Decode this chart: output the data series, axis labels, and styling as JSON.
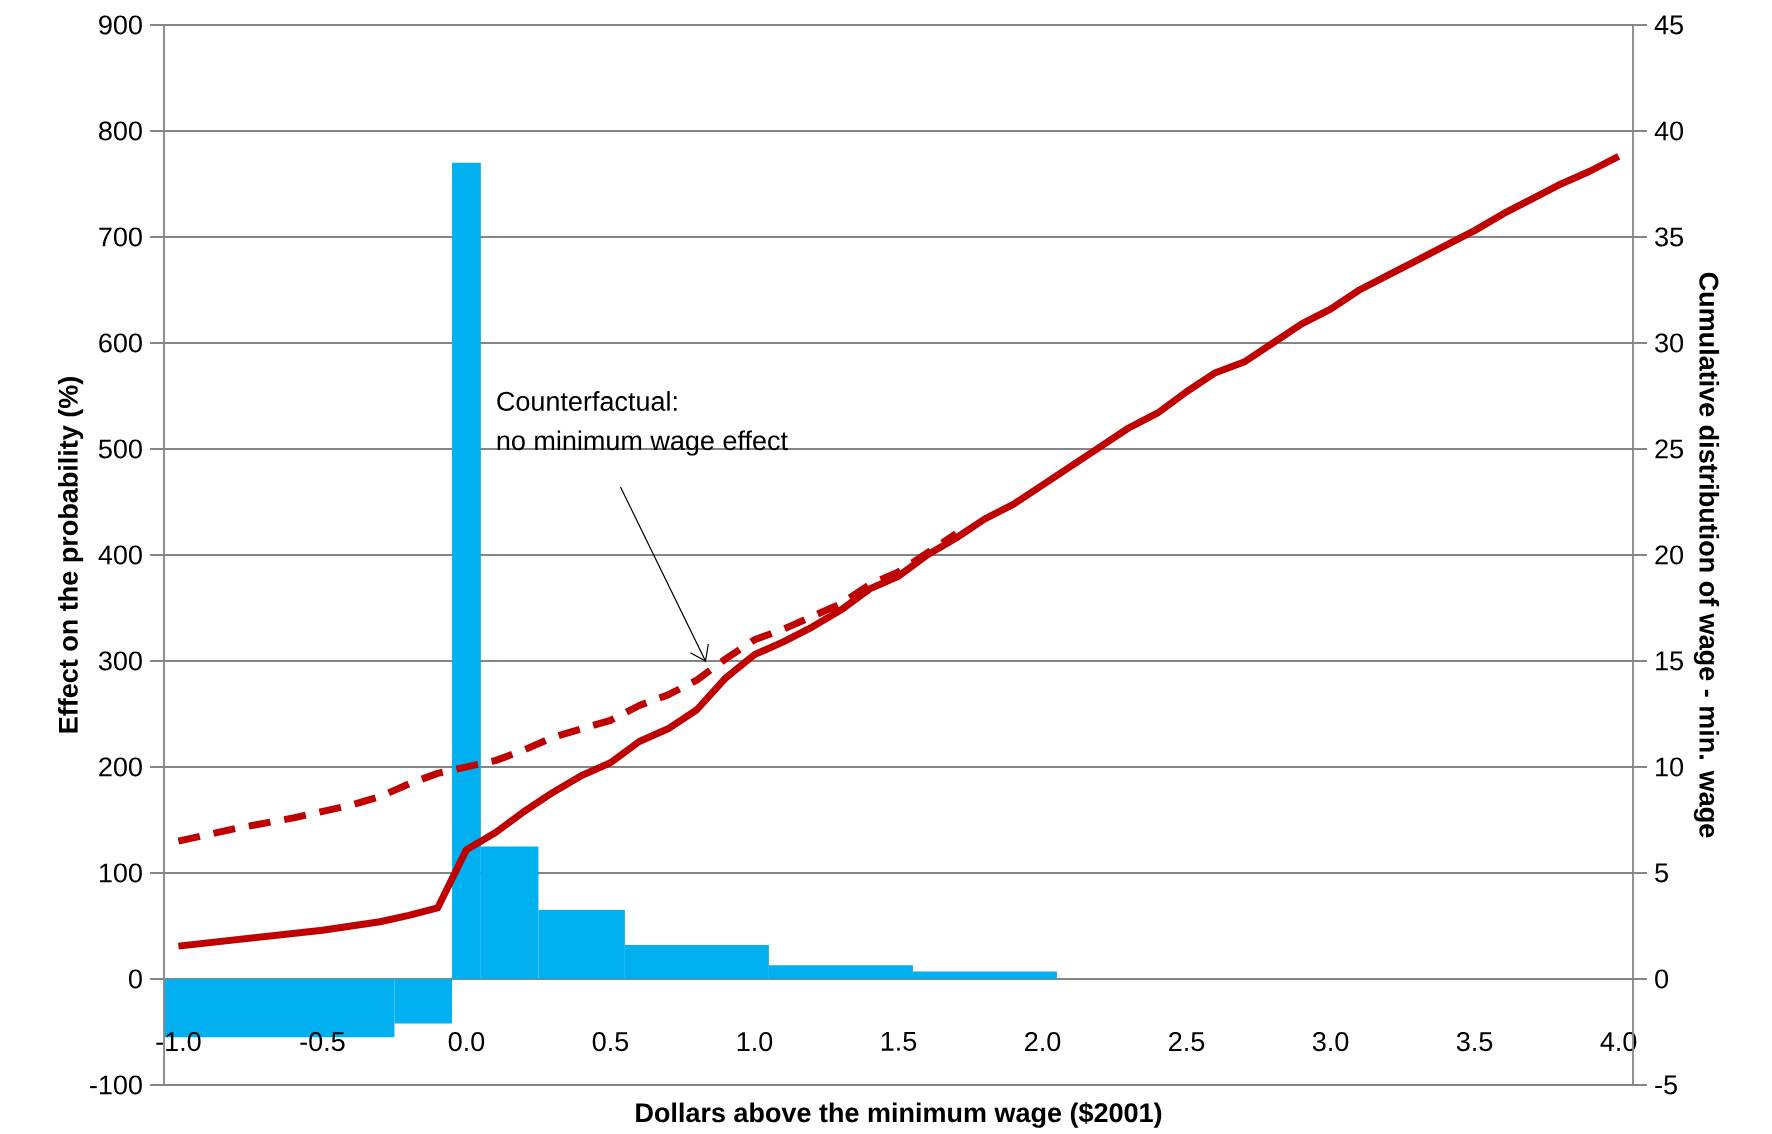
{
  "chart_data": {
    "type": "histogram",
    "xlabel": "Dollars above the minimum wage ($2001)",
    "ylabel": "Effect on the probability (%)",
    "y2label": "Cumulative distribution of wage - min. wage",
    "bins": [
      -1.05,
      -0.25,
      -0.05,
      0.05,
      0.25,
      0.55,
      1.05,
      1.55,
      2.05
    ],
    "values": [
      -55,
      -42,
      770,
      125,
      65,
      32,
      13,
      7
    ],
    "color": "#00b0f0",
    "series": [
      {
        "type": "line",
        "axis": "y2",
        "color": "#c00000",
        "line_style": "solid",
        "x": [
          -1.0,
          -0.5,
          -0.3,
          -0.2,
          -0.1,
          0.0,
          0.1,
          0.2,
          0.3,
          0.4,
          0.5,
          0.6,
          0.7,
          0.8,
          0.9,
          1.0,
          1.1,
          1.2,
          1.3,
          1.4,
          1.5,
          1.6,
          1.7,
          1.8,
          1.9,
          2.0,
          2.1,
          2.2,
          2.3,
          2.4,
          2.5,
          2.6,
          2.7,
          2.8,
          2.9,
          3.0,
          3.1,
          3.2,
          3.3,
          3.4,
          3.5,
          3.6,
          3.7,
          3.8,
          3.9,
          4.0
        ],
        "values": [
          1.55,
          2.3,
          2.7,
          3.0,
          3.35,
          6.1,
          6.9,
          7.9,
          8.8,
          9.6,
          10.2,
          11.2,
          11.8,
          12.7,
          14.2,
          15.3,
          15.9,
          16.6,
          17.4,
          18.4,
          19.0,
          20.0,
          20.8,
          21.7,
          22.4,
          23.3,
          24.2,
          25.1,
          26.0,
          26.7,
          27.7,
          28.6,
          29.1,
          30.0,
          30.9,
          31.6,
          32.5,
          33.2,
          33.9,
          34.6,
          35.3,
          36.1,
          36.8,
          37.5,
          38.1,
          38.8
        ]
      },
      {
        "type": "line",
        "axis": "y2",
        "color": "#c00000",
        "line_style": "dashed",
        "x": [
          -1.0,
          -0.8,
          -0.6,
          -0.4,
          -0.3,
          -0.2,
          -0.1,
          0.0,
          0.1,
          0.2,
          0.3,
          0.4,
          0.5,
          0.6,
          0.7,
          0.8,
          0.9,
          1.0,
          1.1,
          1.2,
          1.3,
          1.4,
          1.5,
          1.6,
          1.7
        ],
        "values": [
          6.5,
          7.1,
          7.6,
          8.2,
          8.6,
          9.2,
          9.7,
          10.0,
          10.3,
          10.8,
          11.4,
          11.8,
          12.2,
          12.9,
          13.4,
          14.1,
          15.1,
          16.0,
          16.5,
          17.1,
          17.7,
          18.6,
          19.2,
          20.1,
          21.0
        ]
      }
    ],
    "xlim": [
      -1.05,
      4.05
    ],
    "xticks": [
      {
        "value": -1,
        "label": "-1.0"
      },
      -0.5,
      {
        "value": 0,
        "label": "0.0"
      },
      0.5,
      {
        "value": 1,
        "label": "1.0"
      },
      1.5,
      {
        "value": 2,
        "label": "2.0"
      },
      2.5,
      {
        "value": 3,
        "label": "3.0"
      },
      3.5,
      {
        "value": 4,
        "label": "4.0"
      }
    ],
    "ylim": [
      -100,
      900
    ],
    "yticks": [
      -100,
      0,
      100,
      200,
      300,
      400,
      500,
      600,
      700,
      800,
      900
    ],
    "y2lim": [
      -5,
      45
    ],
    "y2ticks": [
      -5,
      0,
      5,
      10,
      15,
      20,
      25,
      30,
      35,
      40,
      45
    ],
    "grid": "y",
    "annotations": [
      "Counterfactual:",
      "no minimum wage effect"
    ]
  }
}
